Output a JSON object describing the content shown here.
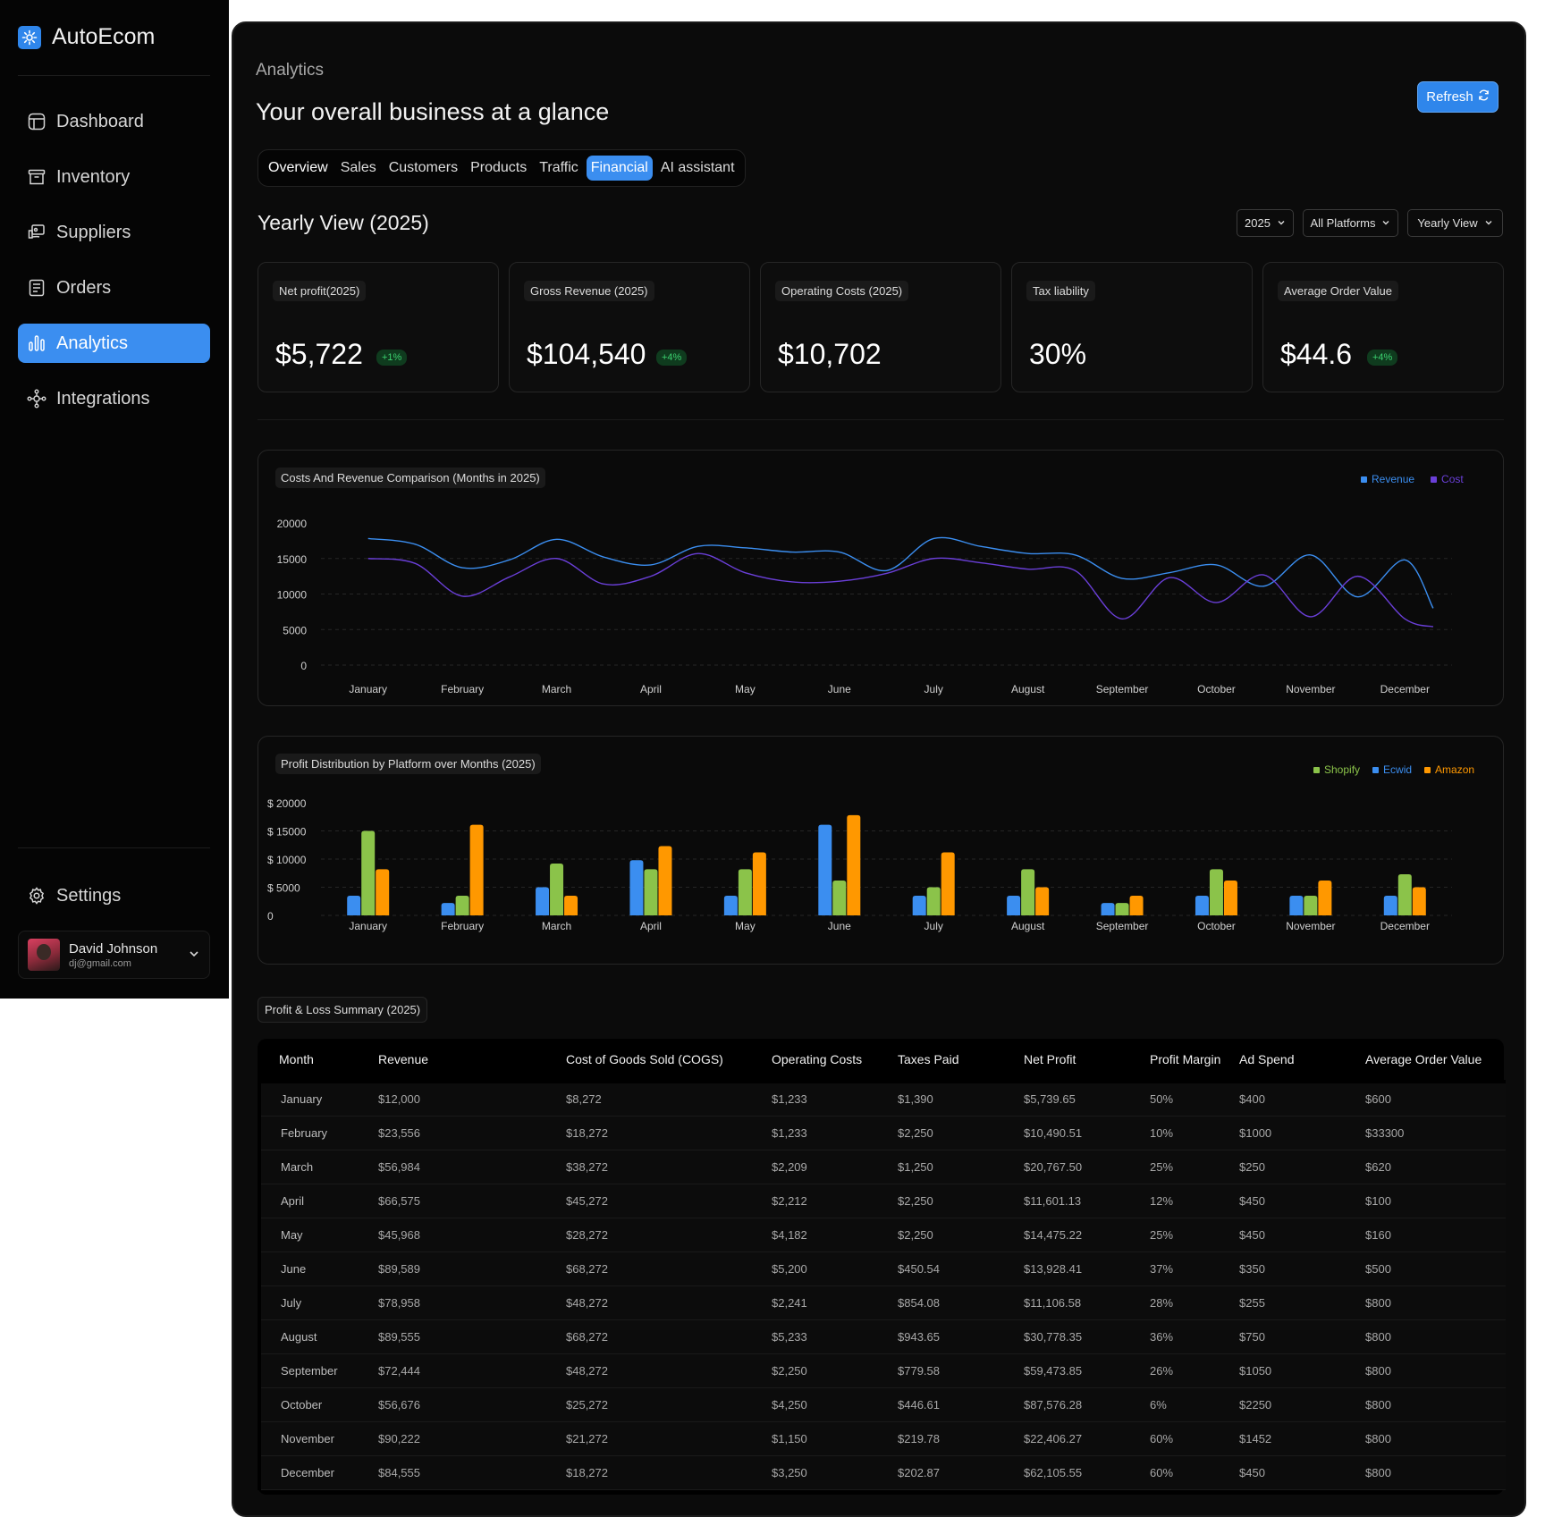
{
  "app": {
    "name": "AutoEcom"
  },
  "sidebar": {
    "items": [
      {
        "label": "Dashboard",
        "icon": "dashboard-icon"
      },
      {
        "label": "Inventory",
        "icon": "inventory-icon"
      },
      {
        "label": "Suppliers",
        "icon": "suppliers-icon"
      },
      {
        "label": "Orders",
        "icon": "orders-icon"
      },
      {
        "label": "Analytics",
        "icon": "analytics-icon",
        "active": true
      },
      {
        "label": "Integrations",
        "icon": "integrations-icon"
      }
    ],
    "settings_label": "Settings",
    "user": {
      "name": "David Johnson",
      "email": "dj@gmail.com"
    }
  },
  "header": {
    "page_label": "Analytics",
    "title": "Your overall business at a  glance",
    "refresh_label": "Refresh"
  },
  "tabs": [
    {
      "label": "Overview"
    },
    {
      "label": "Sales"
    },
    {
      "label": "Customers"
    },
    {
      "label": "Products"
    },
    {
      "label": "Traffic"
    },
    {
      "label": "Financial",
      "active": true
    },
    {
      "label": "AI assistant"
    }
  ],
  "section": {
    "title": "Yearly View (2025)",
    "filters": {
      "year": "2025",
      "platform": "All Platforms",
      "view": "Yearly View"
    }
  },
  "kpis": [
    {
      "label": "Net profit(2025)",
      "value": "$5,722",
      "badge": "+1%"
    },
    {
      "label": "Gross Revenue (2025)",
      "value": "$104,540",
      "badge": "+4%"
    },
    {
      "label": "Operating Costs (2025)",
      "value": "$10,702",
      "badge": ""
    },
    {
      "label": "Tax liability",
      "value": "30%",
      "badge": ""
    },
    {
      "label": "Average Order Value",
      "value": "$44.6",
      "badge": "+4%"
    }
  ],
  "colors": {
    "revenue": "#3b8ef0",
    "cost": "#6a3fd8",
    "shopify": "#8bc34a",
    "ecwid": "#3b8ef0",
    "amazon": "#ff9800",
    "accent": "#3b8ef0"
  },
  "chart_data": [
    {
      "type": "line",
      "title": "Costs And Revenue Comparison (Months in 2025)",
      "categories": [
        "January",
        "February",
        "March",
        "April",
        "May",
        "June",
        "July",
        "August",
        "September",
        "October",
        "November",
        "December"
      ],
      "yticks": [
        "20000",
        "15000",
        "10000",
        "5000",
        "0"
      ],
      "ylim": [
        0,
        20000
      ],
      "grid": true,
      "legend": "top-right",
      "series": [
        {
          "name": "Revenue",
          "color": "#3b8ef0",
          "x": [
            0,
            0.5,
            1,
            1.5,
            2,
            2.5,
            3,
            3.5,
            4,
            4.5,
            5,
            5.5,
            6,
            6.5,
            7,
            7.5,
            8,
            8.5,
            9,
            9.5,
            10,
            10.5,
            11,
            11.3
          ],
          "values": [
            17800,
            17000,
            13700,
            14800,
            17700,
            15200,
            14100,
            16700,
            16500,
            15900,
            15900,
            13300,
            17800,
            16700,
            15700,
            15500,
            12200,
            13000,
            14100,
            11100,
            15500,
            9600,
            14800,
            8000
          ]
        },
        {
          "name": "Cost",
          "color": "#6a3fd8",
          "x": [
            0,
            0.5,
            1,
            1.5,
            2,
            2.5,
            3,
            3.5,
            4,
            4.5,
            5,
            5.5,
            6,
            6.5,
            7,
            7.5,
            8,
            8.5,
            9,
            9.5,
            10,
            10.5,
            11,
            11.3
          ],
          "values": [
            15000,
            14300,
            9700,
            12400,
            15000,
            11400,
            12500,
            15700,
            13000,
            11700,
            11800,
            12900,
            15000,
            14400,
            13500,
            13300,
            6500,
            12300,
            8800,
            12700,
            6800,
            12500,
            6500,
            5400
          ]
        }
      ]
    },
    {
      "type": "bar",
      "title": "Profit Distribution  by Platform over Months (2025)",
      "categories": [
        "January",
        "February",
        "March",
        "April",
        "May",
        "June",
        "July",
        "August",
        "September",
        "October",
        "November",
        "December"
      ],
      "yticks": [
        "$ 20000",
        "$ 15000",
        "$ 10000",
        "$  5000",
        "0"
      ],
      "ylim": [
        0,
        20000
      ],
      "grid": true,
      "legend": "top-right",
      "series": [
        {
          "name": "Ecwid",
          "color": "#3b8ef0",
          "values": [
            3500,
            2200,
            5000,
            9800,
            3500,
            16100,
            3500,
            3500,
            2200,
            3500,
            3500,
            3500
          ]
        },
        {
          "name": "Shopify",
          "color": "#8bc34a",
          "values": [
            15000,
            3500,
            9200,
            8200,
            8200,
            6200,
            5000,
            8200,
            2200,
            8200,
            3500,
            7300
          ]
        },
        {
          "name": "Amazon",
          "color": "#ff9800",
          "values": [
            8200,
            16100,
            3500,
            12300,
            11200,
            17800,
            11200,
            5000,
            3500,
            6200,
            6200,
            5000
          ]
        }
      ]
    }
  ],
  "table": {
    "label": "Profit & Loss Summary (2025)",
    "columns": [
      "Month",
      "Revenue",
      "Cost of Goods Sold (COGS)",
      "Operating Costs",
      "Taxes Paid",
      "Net Profit",
      "Profit Margin",
      "Ad Spend",
      "Average Order Value"
    ],
    "rows": [
      [
        "January",
        "$12,000",
        "$8,272",
        "$1,233",
        "$1,390",
        "$5,739.65",
        "50%",
        "$400",
        "$600"
      ],
      [
        "February",
        "$23,556",
        "$18,272",
        "$1,233",
        "$2,250",
        "$10,490.51",
        "10%",
        "$1000",
        "$33300"
      ],
      [
        "March",
        "$56,984",
        "$38,272",
        "$2,209",
        "$1,250",
        "$20,767.50",
        "25%",
        "$250",
        "$620"
      ],
      [
        "April",
        "$66,575",
        "$45,272",
        "$2,212",
        "$2,250",
        "$11,601.13",
        "12%",
        "$450",
        "$100"
      ],
      [
        "May",
        "$45,968",
        "$28,272",
        "$4,182",
        "$2,250",
        "$14,475.22",
        "25%",
        "$450",
        "$160"
      ],
      [
        "June",
        "$89,589",
        "$68,272",
        "$5,200",
        "$450.54",
        "$13,928.41",
        "37%",
        "$350",
        "$500"
      ],
      [
        "July",
        "$78,958",
        "$48,272",
        "$2,241",
        "$854.08",
        "$11,106.58",
        "28%",
        "$255",
        "$800"
      ],
      [
        "August",
        "$89,555",
        "$68,272",
        "$5,233",
        "$943.65",
        "$30,778.35",
        "36%",
        "$750",
        "$800"
      ],
      [
        "September",
        "$72,444",
        "$48,272",
        "$2,250",
        "$779.58",
        "$59,473.85",
        "26%",
        "$1050",
        "$800"
      ],
      [
        "October",
        "$56,676",
        "$25,272",
        "$4,250",
        "$446.61",
        "$87,576.28",
        "6%",
        "$2250",
        "$800"
      ],
      [
        "November",
        "$90,222",
        "$21,272",
        "$1,150",
        "$219.78",
        "$22,406.27",
        "60%",
        "$1452",
        "$800"
      ],
      [
        "December",
        "$84,555",
        "$18,272",
        "$3,250",
        "$202.87",
        "$62,105.55",
        "60%",
        "$450",
        "$800"
      ]
    ]
  }
}
